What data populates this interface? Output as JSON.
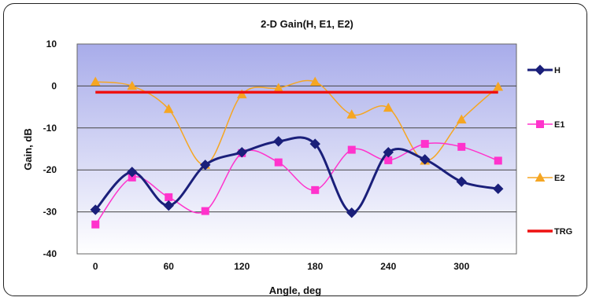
{
  "chart_data": {
    "type": "line",
    "title": "2-D Gain(H, E1, E2)",
    "xlabel": "Angle, deg",
    "ylabel": "Gain, dB",
    "x": [
      0,
      30,
      60,
      90,
      120,
      150,
      180,
      210,
      240,
      270,
      300,
      330
    ],
    "x_ticks": [
      0,
      60,
      120,
      180,
      240,
      300
    ],
    "xlim": [
      -15,
      345
    ],
    "ylim": [
      -40,
      10
    ],
    "y_ticks": [
      -40,
      -30,
      -20,
      -10,
      0,
      10
    ],
    "grid": "horizontal",
    "legend_position": "right",
    "series": [
      {
        "name": "H",
        "color": "#1a1f7a",
        "marker": "diamond",
        "smooth": true,
        "values": [
          -29.5,
          -20.5,
          -28.5,
          -18.8,
          -15.8,
          -13.2,
          -13.8,
          -30.2,
          -15.8,
          -17.5,
          -22.8,
          -24.5
        ]
      },
      {
        "name": "E1",
        "color": "#ff33cc",
        "marker": "square",
        "smooth": true,
        "values": [
          -33,
          -21.8,
          -26.5,
          -29.8,
          -16,
          -18.2,
          -24.8,
          -15.2,
          -17.7,
          -13.8,
          -14.5,
          -17.8
        ]
      },
      {
        "name": "E2",
        "color": "#f5a623",
        "marker": "triangle",
        "smooth": true,
        "values": [
          1,
          0,
          -5.5,
          -18.8,
          -2,
          -0.5,
          1,
          -6.8,
          -5.2,
          -17.8,
          -8,
          -0.2
        ]
      },
      {
        "name": "TRG",
        "color": "#ee1111",
        "marker": "none",
        "smooth": false,
        "values": [
          -1.5,
          -1.5,
          -1.5,
          -1.5,
          -1.5,
          -1.5,
          -1.5,
          -1.5,
          -1.5,
          -1.5,
          -1.5,
          -1.5
        ]
      }
    ],
    "colors": {
      "plot_top": "#a8acea",
      "plot_bottom": "#ffffff"
    }
  }
}
